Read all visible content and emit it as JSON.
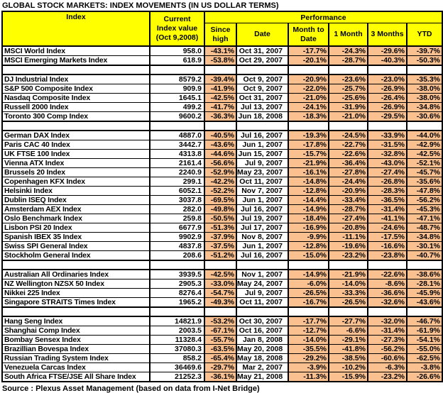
{
  "title": "GLOBAL STOCK MARKETS: INDEX MOVEMENTS (IN US DOLLAR TERMS)",
  "source": "Source : Plexus Asset Management (based on data from I-Net Bridge)",
  "colors": {
    "header_bg": "#FFFF00",
    "performance_cell_bg": "#FAC090",
    "border": "#000000",
    "text": "#000000"
  },
  "header": {
    "index_label": "Index",
    "current_label": "Current\nIndex value\n(Oct 9,2008)",
    "performance_label": "Performance",
    "subheaders": [
      "Since\nhigh",
      "Date",
      "Month to\nDate",
      "1 Month",
      "3 Months",
      "YTD"
    ]
  },
  "chart_data": {
    "type": "table",
    "title": "GLOBAL STOCK MARKETS: INDEX MOVEMENTS (IN US DOLLAR TERMS)",
    "columns": [
      "Index",
      "Current Index value (Oct 9,2008)",
      "Since high",
      "Date",
      "Month to Date",
      "1 Month",
      "3 Months",
      "YTD"
    ],
    "groups": [
      [
        [
          "MSCI World Index",
          "958.0",
          "-43.1%",
          "Oct 31, 2007",
          "-17.7%",
          "-24.3%",
          "-29.6%",
          "-39.7%"
        ],
        [
          "MSCI Emerging Markets Index",
          "618.9",
          "-53.8%",
          "Oct 29, 2007",
          "-20.1%",
          "-28.7%",
          "-40.3%",
          "-50.3%"
        ]
      ],
      [
        [
          "DJ Industrial Index",
          "8579.2",
          "-39.4%",
          "Oct 9, 2007",
          "-20.9%",
          "-23.6%",
          "-23.0%",
          "-35.3%"
        ],
        [
          "S&P 500 Composite Index",
          "909.9",
          "-41.9%",
          "Oct 9, 2007",
          "-22.0%",
          "-25.7%",
          "-26.9%",
          "-38.0%"
        ],
        [
          "Nasdaq Composite Index",
          "1645.1",
          "-42.5%",
          "Oct 31, 2007",
          "-21.0%",
          "-25.6%",
          "-26.4%",
          "-38.0%"
        ],
        [
          "Russell 2000 Index",
          "499.2",
          "-41.7%",
          "Jul 13, 2007",
          "-24.1%",
          "-31.9%",
          "-26.9%",
          "-34.8%"
        ],
        [
          "Toronto 300 Comp Index",
          "9600.2",
          "-36.3%",
          "Jun 18, 2008",
          "-18.3%",
          "-21.0%",
          "-29.5%",
          "-30.6%"
        ]
      ],
      [
        [
          "German DAX Index",
          "4887.0",
          "-40.5%",
          "Jul 16, 2007",
          "-19.3%",
          "-24.5%",
          "-33.9%",
          "-44.0%"
        ],
        [
          "Paris CAC 40 Index",
          "3442.7",
          "-43.6%",
          "Jun 1, 2007",
          "-17.8%",
          "-22.7%",
          "-31.5%",
          "-42.9%"
        ],
        [
          "UK FTSE 100 Index",
          "4313.8",
          "-44.6%",
          "Jun 15, 2007",
          "-15.7%",
          "-22.6%",
          "-32.8%",
          "-42.5%"
        ],
        [
          "Vienna ATX Index",
          "2161.4",
          "-56.6%",
          "Jul 9, 2007",
          "-21.9%",
          "-36.4%",
          "-43.0%",
          "-52.1%"
        ],
        [
          "Brussels 20 Index",
          "2240.9",
          "-52.9%",
          "May 23, 2007",
          "-16.1%",
          "-27.8%",
          "-27.4%",
          "-45.7%"
        ],
        [
          "Copenhagen KFX Index",
          "299.1",
          "-42.2%",
          "Oct 11, 2007",
          "-14.8%",
          "-24.4%",
          "-26.8%",
          "-35.6%"
        ],
        [
          "Helsinki Index",
          "6052.1",
          "-52.2%",
          "Nov 7, 2007",
          "-12.8%",
          "-20.9%",
          "-28.3%",
          "-47.8%"
        ],
        [
          "Dublin ISEQ Index",
          "3037.8",
          "-69.5%",
          "Jun 1, 2007",
          "-14.4%",
          "-33.4%",
          "-36.5%",
          "-56.2%"
        ],
        [
          "Amsterdam AEX Index",
          "282.0",
          "-49.8%",
          "Jul 16, 2007",
          "-14.9%",
          "-28.7%",
          "-31.4%",
          "-45.3%"
        ],
        [
          "Oslo Benchmark Index",
          "259.8",
          "-50.5%",
          "Jul 19, 2007",
          "-18.4%",
          "-27.4%",
          "-41.1%",
          "-47.1%"
        ],
        [
          "Lisbon PSI 20 Index",
          "6677.9",
          "-51.3%",
          "Jul 17, 2007",
          "-16.9%",
          "-20.8%",
          "-24.6%",
          "-48.7%"
        ],
        [
          "Spanish IBEX 35 Index",
          "9902.9",
          "-37.9%",
          "Nov 8, 2007",
          "-9.9%",
          "-11.1%",
          "-17.5%",
          "-34.8%"
        ],
        [
          "Swiss SPI General Index",
          "4837.8",
          "-37.5%",
          "Jun 1, 2007",
          "-12.8%",
          "-19.6%",
          "-16.6%",
          "-30.1%"
        ],
        [
          "Stockholm General Index",
          "208.6",
          "-51.2%",
          "Jul 16, 2007",
          "-15.0%",
          "-23.2%",
          "-23.8%",
          "-40.7%"
        ]
      ],
      [
        [
          "Australian All Ordinaries Index",
          "3939.5",
          "-42.5%",
          "Nov 1, 2007",
          "-14.9%",
          "-21.9%",
          "-22.6%",
          "-38.6%"
        ],
        [
          "NZ Wellington NZSX 50 Index",
          "2905.3",
          "-33.0%",
          "May 24, 2007",
          "-6.0%",
          "-14.0%",
          "-8.6%",
          "-28.1%"
        ],
        [
          "Nikkei 225 Index",
          "8276.4",
          "-54.7%",
          "Jul 9, 2007",
          "-26.5%",
          "-33.3%",
          "-36.6%",
          "-45.9%"
        ],
        [
          "Singapore STRAITS Times Index",
          "1965.2",
          "-49.3%",
          "Oct 11, 2007",
          "-16.7%",
          "-26.5%",
          "-32.6%",
          "-43.6%"
        ]
      ],
      [
        [
          "Hang Seng Index",
          "14821.9",
          "-53.2%",
          "Oct 30, 2007",
          "-17.7%",
          "-27.7%",
          "-32.0%",
          "-46.7%"
        ],
        [
          "Shanghai Comp Index",
          "2003.5",
          "-67.1%",
          "Oct 16, 2007",
          "-12.7%",
          "-6.6%",
          "-31.4%",
          "-61.9%"
        ],
        [
          "Bombay Sensex Index",
          "11328.4",
          "-55.7%",
          "Jan 8, 2008",
          "-14.0%",
          "-29.1%",
          "-27.3%",
          "-54.1%"
        ],
        [
          "Brazillian Bovespa Index",
          "37080.3",
          "-63.5%",
          "May 20, 2008",
          "-35.5%",
          "-41.8%",
          "-56.2%",
          "-55.0%"
        ],
        [
          "Russian Trading System Index",
          "858.2",
          "-65.4%",
          "May 18, 2008",
          "-29.2%",
          "-38.5%",
          "-60.6%",
          "-62.5%"
        ],
        [
          "Venezuela Carcas Index",
          "36469.6",
          "-29.7%",
          "Mar 2, 2007",
          "-3.9%",
          "-10.2%",
          "-6.3%",
          "-3.8%"
        ],
        [
          "South Africa FTSE/JSE All Share Index",
          "21252.3",
          "-36.1%",
          "May 21, 2008",
          "-11.3%",
          "-15.9%",
          "-23.2%",
          "-26.6%"
        ]
      ]
    ]
  }
}
